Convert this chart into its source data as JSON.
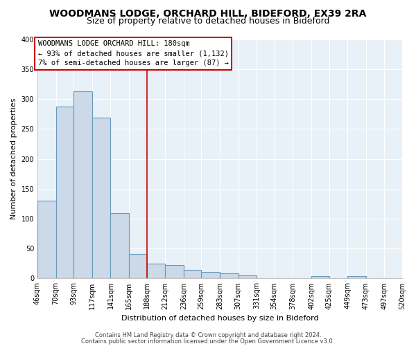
{
  "title": "WOODMANS LODGE, ORCHARD HILL, BIDEFORD, EX39 2RA",
  "subtitle": "Size of property relative to detached houses in Bideford",
  "xlabel": "Distribution of detached houses by size in Bideford",
  "ylabel": "Number of detached properties",
  "bar_color": "#ccd9e8",
  "bar_edge_color": "#6699bb",
  "highlight_line_color": "#cc0000",
  "bins": [
    46,
    70,
    93,
    117,
    141,
    165,
    188,
    212,
    236,
    259,
    283,
    307,
    331,
    354,
    378,
    402,
    425,
    449,
    473,
    497,
    520
  ],
  "bin_labels": [
    "46sqm",
    "70sqm",
    "93sqm",
    "117sqm",
    "141sqm",
    "165sqm",
    "188sqm",
    "212sqm",
    "236sqm",
    "259sqm",
    "283sqm",
    "307sqm",
    "331sqm",
    "354sqm",
    "378sqm",
    "402sqm",
    "425sqm",
    "449sqm",
    "473sqm",
    "497sqm",
    "520sqm"
  ],
  "counts": [
    130,
    287,
    313,
    269,
    109,
    41,
    25,
    22,
    14,
    11,
    9,
    5,
    0,
    0,
    0,
    4,
    0,
    4,
    0,
    0,
    0
  ],
  "ylim": [
    0,
    400
  ],
  "yticks": [
    0,
    50,
    100,
    150,
    200,
    250,
    300,
    350,
    400
  ],
  "annotation_title": "WOODMANS LODGE ORCHARD HILL: 180sqm",
  "annotation_line1": "← 93% of detached houses are smaller (1,132)",
  "annotation_line2": "7% of semi-detached houses are larger (87) →",
  "annotation_box_color": "#ffffff",
  "annotation_box_edge": "#cc0000",
  "footer1": "Contains HM Land Registry data © Crown copyright and database right 2024.",
  "footer2": "Contains public sector information licensed under the Open Government Licence v3.0.",
  "background_color": "#ffffff",
  "plot_bg_color": "#e8f0f8",
  "grid_color": "#ffffff",
  "title_fontsize": 10,
  "subtitle_fontsize": 9,
  "ylabel_fontsize": 8,
  "xlabel_fontsize": 8,
  "tick_fontsize": 7
}
